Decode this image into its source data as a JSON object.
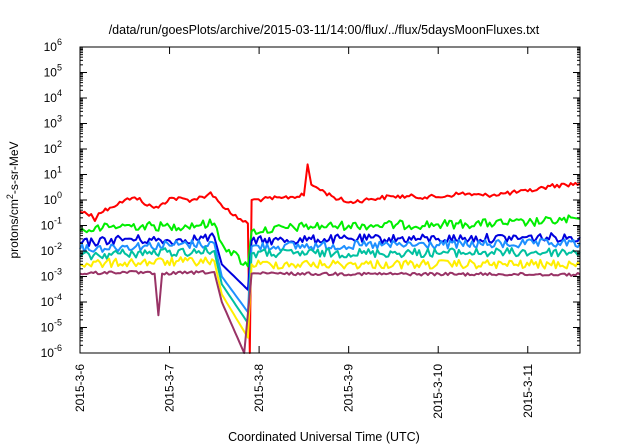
{
  "chart_data": {
    "type": "line",
    "title": "/data/run/goesPlots/archive/2015-03-11/14:00/flux/../flux/5daysMoonFluxes.txt",
    "xlabel": "Coordinated Universal Time (UTC)",
    "ylabel": {
      "pre": "protons/cm",
      "sup": "2",
      "post": "-s-sr-MeV"
    },
    "yscale": "log",
    "ylim": [
      1e-06,
      1000000.0
    ],
    "y_ticks": [
      {
        "base": "10",
        "exp": "-6",
        "value": 1e-06
      },
      {
        "base": "10",
        "exp": "-5",
        "value": 1e-05
      },
      {
        "base": "10",
        "exp": "-4",
        "value": 0.0001
      },
      {
        "base": "10",
        "exp": "-3",
        "value": 0.001
      },
      {
        "base": "10",
        "exp": "-2",
        "value": 0.01
      },
      {
        "base": "10",
        "exp": "-1",
        "value": 0.1
      },
      {
        "base": "10",
        "exp": "0",
        "value": 1
      },
      {
        "base": "10",
        "exp": "1",
        "value": 10
      },
      {
        "base": "10",
        "exp": "2",
        "value": 100
      },
      {
        "base": "10",
        "exp": "3",
        "value": 1000
      },
      {
        "base": "10",
        "exp": "4",
        "value": 10000
      },
      {
        "base": "10",
        "exp": "5",
        "value": 100000
      },
      {
        "base": "10",
        "exp": "6",
        "value": 1000000
      }
    ],
    "xlim": [
      "2015-03-06T00:00",
      "2015-03-11T14:00"
    ],
    "x_ticks": [
      {
        "label": "2015-3-6",
        "value": "2015-03-06"
      },
      {
        "label": "2015-3-7",
        "value": "2015-03-07"
      },
      {
        "label": "2015-3-8",
        "value": "2015-03-08"
      },
      {
        "label": "2015-3-9",
        "value": "2015-03-09"
      },
      {
        "label": "2015-3-10",
        "value": "2015-03-10"
      },
      {
        "label": "2015-3-11",
        "value": "2015-03-11"
      }
    ],
    "grid": false,
    "series": [
      {
        "color": "#ff0000",
        "points": [
          [
            "2015-03-06T00:00",
            0.35
          ],
          [
            "2015-03-06T03:00",
            0.28
          ],
          [
            "2015-03-06T04:00",
            0.15
          ],
          [
            "2015-03-06T05:00",
            0.3
          ],
          [
            "2015-03-06T08:00",
            0.5
          ],
          [
            "2015-03-06T12:00",
            1.0
          ],
          [
            "2015-03-06T16:00",
            1.2
          ],
          [
            "2015-03-06T18:00",
            0.6
          ],
          [
            "2015-03-06T21:00",
            0.5
          ],
          [
            "2015-03-07T00:00",
            1.2
          ],
          [
            "2015-03-07T06:00",
            1.0
          ],
          [
            "2015-03-07T10:00",
            1.5
          ],
          [
            "2015-03-07T11:00",
            2.0
          ],
          [
            "2015-03-07T13:00",
            0.9
          ],
          [
            "2015-03-07T17:00",
            0.25
          ],
          [
            "2015-03-07T21:00",
            0.12
          ],
          [
            "2015-03-07T21:30",
            1e-06
          ],
          [
            "2015-03-07T22:00",
            1.0
          ],
          [
            "2015-03-08T06:00",
            1.2
          ],
          [
            "2015-03-08T12:00",
            1.5
          ],
          [
            "2015-03-08T13:00",
            25
          ],
          [
            "2015-03-08T14:00",
            4
          ],
          [
            "2015-03-08T20:00",
            1.3
          ],
          [
            "2015-03-09T00:00",
            0.8
          ],
          [
            "2015-03-09T06:00",
            1.1
          ],
          [
            "2015-03-09T12:00",
            1.4
          ],
          [
            "2015-03-10T00:00",
            1.3
          ],
          [
            "2015-03-10T06:00",
            1.8
          ],
          [
            "2015-03-10T12:00",
            1.5
          ],
          [
            "2015-03-11T00:00",
            2.2
          ],
          [
            "2015-03-11T06:00",
            3.5
          ],
          [
            "2015-03-11T14:00",
            4.5
          ]
        ]
      },
      {
        "color": "#00ee00",
        "points": [
          [
            "2015-03-06T00:00",
            0.06
          ],
          [
            "2015-03-06T06:00",
            0.08
          ],
          [
            "2015-03-06T12:00",
            0.1
          ],
          [
            "2015-03-07T00:00",
            0.09
          ],
          [
            "2015-03-07T12:00",
            0.12
          ],
          [
            "2015-03-07T14:00",
            0.02
          ],
          [
            "2015-03-07T21:00",
            0.0025
          ],
          [
            "2015-03-07T22:00",
            0.06
          ],
          [
            "2015-03-08T12:00",
            0.09
          ],
          [
            "2015-03-09T00:00",
            0.1
          ],
          [
            "2015-03-10T00:00",
            0.11
          ],
          [
            "2015-03-11T00:00",
            0.13
          ],
          [
            "2015-03-11T14:00",
            0.18
          ]
        ]
      },
      {
        "color": "#0000dd",
        "points": [
          [
            "2015-03-06T00:00",
            0.02
          ],
          [
            "2015-03-06T12:00",
            0.03
          ],
          [
            "2015-03-07T00:00",
            0.025
          ],
          [
            "2015-03-07T12:00",
            0.035
          ],
          [
            "2015-03-07T14:00",
            0.003
          ],
          [
            "2015-03-07T21:00",
            0.0003
          ],
          [
            "2015-03-07T22:00",
            0.025
          ],
          [
            "2015-03-09T00:00",
            0.03
          ],
          [
            "2015-03-10T00:00",
            0.03
          ],
          [
            "2015-03-11T14:00",
            0.035
          ]
        ]
      },
      {
        "color": "#1e90ff",
        "points": [
          [
            "2015-03-06T00:00",
            0.012
          ],
          [
            "2015-03-06T12:00",
            0.015
          ],
          [
            "2015-03-07T12:00",
            0.02
          ],
          [
            "2015-03-07T14:00",
            0.001
          ],
          [
            "2015-03-07T21:00",
            4e-05
          ],
          [
            "2015-03-07T22:00",
            0.015
          ],
          [
            "2015-03-11T14:00",
            0.02
          ]
        ]
      },
      {
        "color": "#00c0a0",
        "points": [
          [
            "2015-03-06T00:00",
            0.006
          ],
          [
            "2015-03-06T12:00",
            0.008
          ],
          [
            "2015-03-07T12:00",
            0.01
          ],
          [
            "2015-03-07T14:00",
            0.0005
          ],
          [
            "2015-03-07T21:00",
            1.5e-05
          ],
          [
            "2015-03-07T22:00",
            0.008
          ],
          [
            "2015-03-11T14:00",
            0.009
          ]
        ]
      },
      {
        "color": "#ffee00",
        "points": [
          [
            "2015-03-06T00:00",
            0.003
          ],
          [
            "2015-03-06T12:00",
            0.0035
          ],
          [
            "2015-03-07T12:00",
            0.004
          ],
          [
            "2015-03-07T14:00",
            0.0002
          ],
          [
            "2015-03-07T21:00",
            4e-06
          ],
          [
            "2015-03-07T22:00",
            0.003
          ],
          [
            "2015-03-11T14:00",
            0.003
          ]
        ]
      },
      {
        "color": "#993366",
        "points": [
          [
            "2015-03-06T00:00",
            0.0013
          ],
          [
            "2015-03-06T12:00",
            0.0015
          ],
          [
            "2015-03-06T20:00",
            0.0013
          ],
          [
            "2015-03-06T21:00",
            3e-05
          ],
          [
            "2015-03-06T22:00",
            0.0013
          ],
          [
            "2015-03-07T12:00",
            0.0015
          ],
          [
            "2015-03-07T14:00",
            0.0001
          ],
          [
            "2015-03-07T20:00",
            1e-06
          ],
          [
            "2015-03-07T22:00",
            0.0013
          ],
          [
            "2015-03-11T14:00",
            0.0012
          ]
        ]
      }
    ]
  }
}
